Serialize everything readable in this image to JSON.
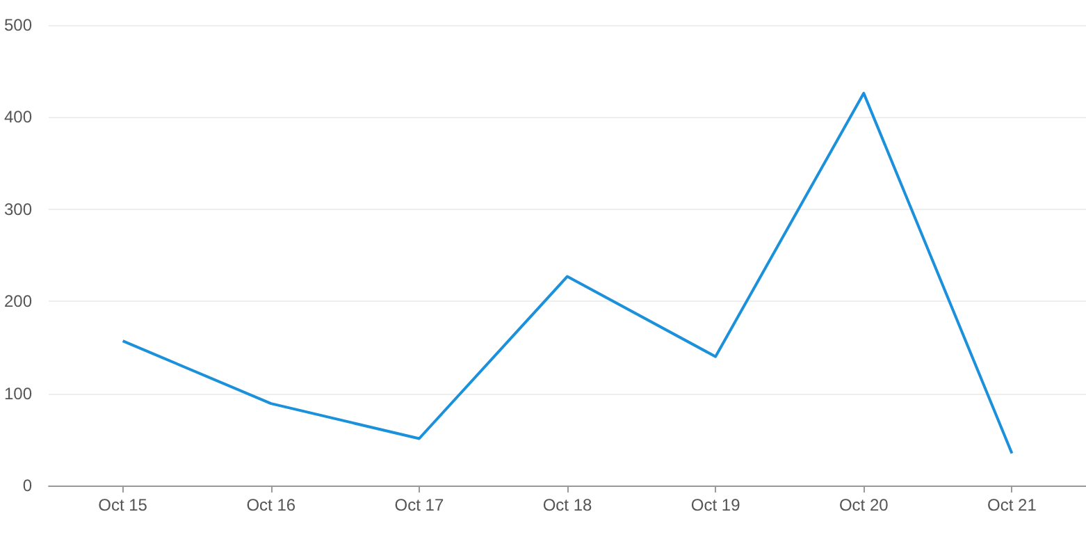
{
  "chart_data": {
    "type": "line",
    "categories": [
      "Oct 15",
      "Oct 16",
      "Oct 17",
      "Oct 18",
      "Oct 19",
      "Oct 20",
      "Oct 21"
    ],
    "series": [
      {
        "color": "#1b90db",
        "values": [
          157,
          89,
          51,
          227,
          140,
          426,
          35
        ]
      }
    ],
    "ylim": [
      0,
      500
    ],
    "yticks": [
      0,
      100,
      200,
      300,
      400,
      500
    ],
    "grid": "y",
    "marker": "none",
    "line_style": "solid"
  }
}
